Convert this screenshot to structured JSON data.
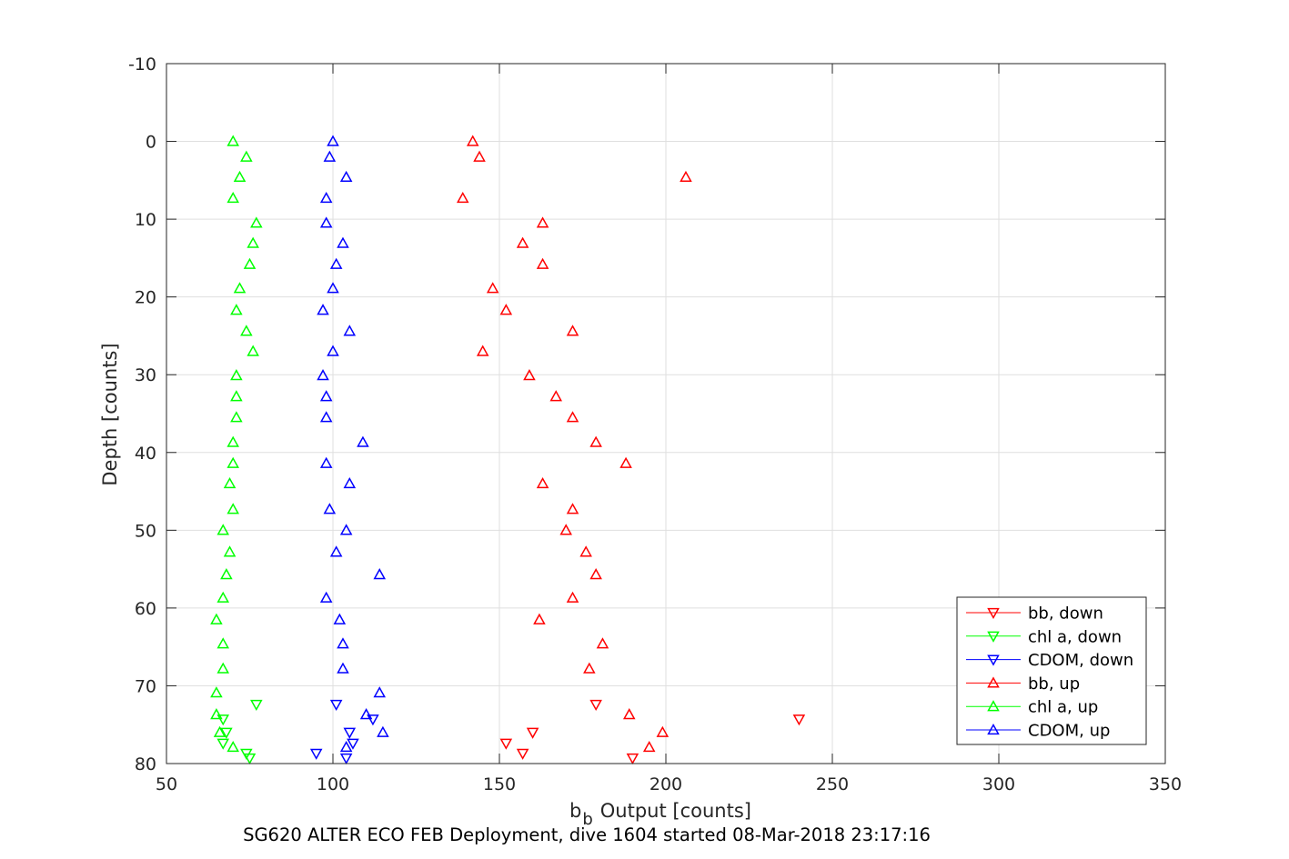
{
  "chart_data": {
    "type": "scatter",
    "title": "SG620 ALTER ECO FEB Deployment, dive 1604 started 08-Mar-2018 23:17:16",
    "xlabel": {
      "base": "b",
      "subscript": "b",
      "text": "Output [counts]"
    },
    "ylabel": "Depth [counts]",
    "xlim": [
      50,
      350
    ],
    "ylim": [
      -10,
      80
    ],
    "y_reversed": true,
    "xticks": [
      50,
      100,
      150,
      200,
      250,
      300,
      350
    ],
    "yticks": [
      -10,
      0,
      10,
      20,
      30,
      40,
      50,
      60,
      70,
      80
    ],
    "grid": true,
    "legend_position": "bottom-right",
    "series": [
      {
        "name": "bb, down",
        "color": "#ff0000",
        "marker": "triangle-down",
        "points": [
          [
            179,
            72.4
          ],
          [
            240,
            74.3
          ],
          [
            160,
            76.0
          ],
          [
            152,
            77.4
          ],
          [
            157,
            78.7
          ],
          [
            190,
            79.3
          ]
        ]
      },
      {
        "name": "chl a, down",
        "color": "#00ff00",
        "marker": "triangle-down",
        "points": [
          [
            77,
            72.4
          ],
          [
            67,
            74.3
          ],
          [
            68,
            76.0
          ],
          [
            67,
            77.4
          ],
          [
            74,
            78.7
          ],
          [
            75,
            79.3
          ]
        ]
      },
      {
        "name": "CDOM, down",
        "color": "#0000ff",
        "marker": "triangle-down",
        "points": [
          [
            101,
            72.4
          ],
          [
            112,
            74.3
          ],
          [
            105,
            76.0
          ],
          [
            106,
            77.4
          ],
          [
            95,
            78.7
          ],
          [
            104,
            79.3
          ]
        ]
      },
      {
        "name": "bb, up",
        "color": "#ff0000",
        "marker": "triangle-up",
        "points": [
          [
            142,
            0
          ],
          [
            144,
            2
          ],
          [
            206,
            4.6
          ],
          [
            139,
            7.3
          ],
          [
            163,
            10.5
          ],
          [
            157,
            13.1
          ],
          [
            163,
            15.8
          ],
          [
            148,
            18.9
          ],
          [
            152,
            21.7
          ],
          [
            172,
            24.4
          ],
          [
            145,
            27.0
          ],
          [
            159,
            30.1
          ],
          [
            167,
            32.8
          ],
          [
            172,
            35.5
          ],
          [
            179,
            38.7
          ],
          [
            188,
            41.4
          ],
          [
            163,
            44.0
          ],
          [
            172,
            47.3
          ],
          [
            170,
            50.0
          ],
          [
            176,
            52.8
          ],
          [
            179,
            55.7
          ],
          [
            172,
            58.7
          ],
          [
            162,
            61.5
          ],
          [
            181,
            64.6
          ],
          [
            177,
            67.8
          ],
          [
            189,
            73.7
          ],
          [
            199,
            76.0
          ],
          [
            195,
            77.9
          ]
        ]
      },
      {
        "name": "chl a, up",
        "color": "#00ff00",
        "marker": "triangle-up",
        "points": [
          [
            70,
            0
          ],
          [
            74,
            2
          ],
          [
            72,
            4.6
          ],
          [
            70,
            7.3
          ],
          [
            77,
            10.5
          ],
          [
            76,
            13.1
          ],
          [
            75,
            15.8
          ],
          [
            72,
            18.9
          ],
          [
            71,
            21.7
          ],
          [
            74,
            24.4
          ],
          [
            76,
            27.0
          ],
          [
            71,
            30.1
          ],
          [
            71,
            32.8
          ],
          [
            71,
            35.5
          ],
          [
            70,
            38.7
          ],
          [
            70,
            41.4
          ],
          [
            69,
            44.0
          ],
          [
            70,
            47.3
          ],
          [
            67,
            50.0
          ],
          [
            69,
            52.8
          ],
          [
            68,
            55.7
          ],
          [
            67,
            58.7
          ],
          [
            65,
            61.5
          ],
          [
            67,
            64.6
          ],
          [
            67,
            67.8
          ],
          [
            65,
            70.9
          ],
          [
            65,
            73.7
          ],
          [
            66,
            76.0
          ],
          [
            70,
            77.9
          ]
        ]
      },
      {
        "name": "CDOM, up",
        "color": "#0000ff",
        "marker": "triangle-up",
        "points": [
          [
            100,
            0
          ],
          [
            99,
            2
          ],
          [
            104,
            4.6
          ],
          [
            98,
            7.3
          ],
          [
            98,
            10.5
          ],
          [
            103,
            13.1
          ],
          [
            101,
            15.8
          ],
          [
            100,
            18.9
          ],
          [
            97,
            21.7
          ],
          [
            105,
            24.4
          ],
          [
            100,
            27.0
          ],
          [
            97,
            30.1
          ],
          [
            98,
            32.8
          ],
          [
            98,
            35.5
          ],
          [
            109,
            38.7
          ],
          [
            98,
            41.4
          ],
          [
            105,
            44.0
          ],
          [
            99,
            47.3
          ],
          [
            104,
            50.0
          ],
          [
            101,
            52.8
          ],
          [
            114,
            55.7
          ],
          [
            98,
            58.7
          ],
          [
            102,
            61.5
          ],
          [
            103,
            64.6
          ],
          [
            103,
            67.8
          ],
          [
            114,
            70.9
          ],
          [
            110,
            73.7
          ],
          [
            115,
            76.0
          ],
          [
            104,
            77.9
          ]
        ]
      }
    ]
  }
}
